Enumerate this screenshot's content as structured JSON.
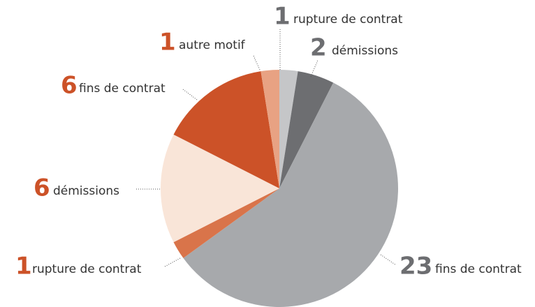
{
  "chart_data": {
    "type": "pie",
    "categories": [
      "rupture de contrat",
      "démissions",
      "fins de contrat",
      "rupture de contrat",
      "démissions",
      "fins de contrat",
      "autre motif"
    ],
    "values": [
      1,
      2,
      23,
      1,
      6,
      6,
      1
    ],
    "colors": [
      "#c5c6c8",
      "#6d6e71",
      "#a7a9ac",
      "#d9744a",
      "#f9e5d8",
      "#cc5228",
      "#e8a283"
    ],
    "value_label_colors": [
      "#6d6e71",
      "#6d6e71",
      "#6d6e71",
      "#cc5228",
      "#cc5228",
      "#cc5228",
      "#cc5228"
    ]
  }
}
